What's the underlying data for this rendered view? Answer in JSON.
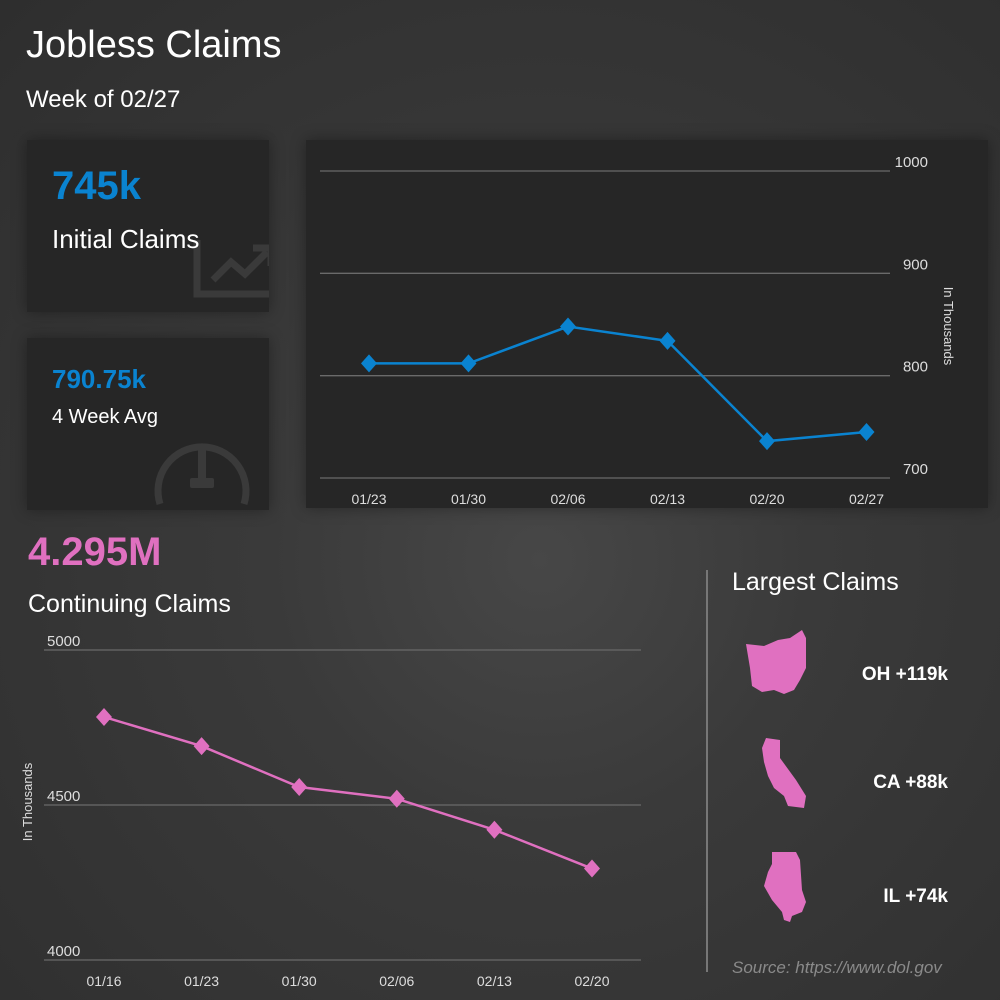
{
  "header": {
    "title": "Jobless Claims",
    "subtitle": "Week of 02/27"
  },
  "initial": {
    "value": "745k",
    "label": "Initial Claims",
    "icon": "line-chart-icon"
  },
  "average": {
    "value": "790.75k",
    "label": "4 Week Avg",
    "icon": "gauge-icon"
  },
  "continuing": {
    "value": "4.295M",
    "label": "Continuing Claims"
  },
  "largest": {
    "title": "Largest Claims",
    "items": [
      {
        "state": "OH",
        "label": "OH +119k"
      },
      {
        "state": "CA",
        "label": "CA +88k"
      },
      {
        "state": "IL",
        "label": "IL +74k"
      }
    ]
  },
  "source": "Source: https://www.dol.gov",
  "colors": {
    "initial": "#0a83d0",
    "continuing": "#e070c0"
  },
  "chart_data": [
    {
      "type": "line",
      "categories": [
        "01/23",
        "01/30",
        "02/06",
        "02/13",
        "02/20",
        "02/27"
      ],
      "values": [
        812,
        812,
        848,
        834,
        736,
        745
      ],
      "ylabel": "In Thousands",
      "ylim": [
        700,
        1000
      ],
      "yticks": [
        "700",
        "800",
        "900",
        "1000"
      ],
      "grid": true,
      "marker": "diamond"
    },
    {
      "type": "line",
      "categories": [
        "01/16",
        "01/23",
        "01/30",
        "02/06",
        "02/13",
        "02/20"
      ],
      "values": [
        4784,
        4690,
        4558,
        4520,
        4420,
        4295
      ],
      "ylabel": "In Thousands",
      "ylim": [
        4000,
        5000
      ],
      "yticks": [
        "4000",
        "4500",
        "5000"
      ],
      "grid": true,
      "marker": "diamond"
    }
  ]
}
